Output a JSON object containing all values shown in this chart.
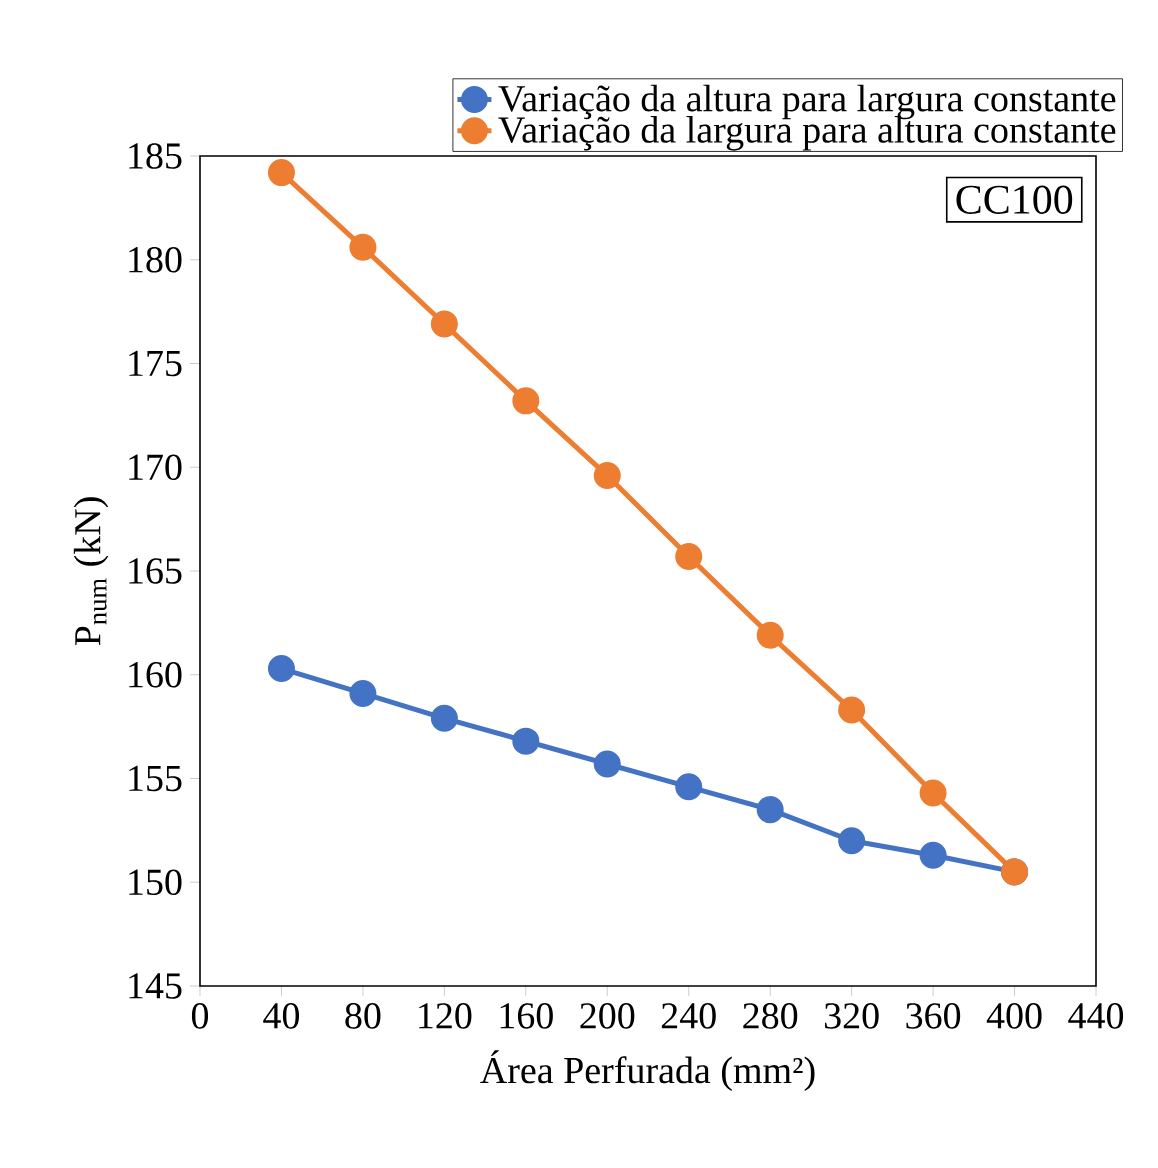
{
  "chart_data": {
    "type": "line",
    "xlabel": "Área Perfurada (mm²)",
    "ylabel": "P$_{num}$ (kN)",
    "annotations": [
      "CC100"
    ],
    "x": [
      40,
      80,
      120,
      160,
      200,
      240,
      280,
      320,
      360,
      400
    ],
    "series": [
      {
        "name": "Variação da altura para largura constante",
        "color": "#4472c4",
        "values": [
          160.3,
          159.1,
          157.9,
          156.8,
          155.7,
          154.6,
          153.5,
          152.0,
          151.3,
          150.5
        ]
      },
      {
        "name": "Variação da largura para altura constante",
        "color": "#ed7d31",
        "values": [
          184.2,
          180.6,
          176.9,
          173.2,
          169.6,
          165.7,
          161.9,
          158.3,
          154.3,
          150.5
        ]
      }
    ],
    "xlim": [
      0,
      440
    ],
    "xticks": [
      0,
      40,
      80,
      120,
      160,
      200,
      240,
      280,
      320,
      360,
      400,
      440
    ],
    "ylim": [
      145,
      185
    ],
    "yticks": [
      145,
      150,
      155,
      160,
      165,
      170,
      175,
      180,
      185
    ],
    "grid": false,
    "legend": "top",
    "marker": "circle",
    "line_style": "solid"
  }
}
